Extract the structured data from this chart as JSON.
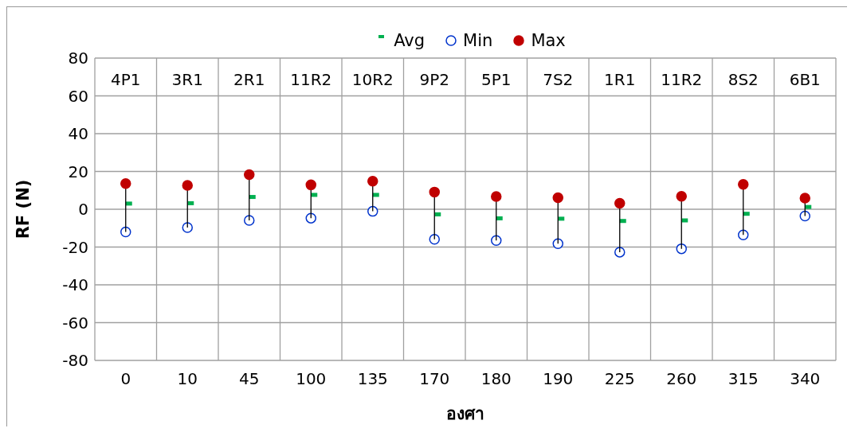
{
  "chart_data": {
    "type": "scatter",
    "xlabel": "องศา",
    "ylabel": "RF (N)",
    "categories": [
      "0",
      "10",
      "45",
      "100",
      "135",
      "170",
      "180",
      "190",
      "225",
      "260",
      "315",
      "340"
    ],
    "series": [
      {
        "name": "Avg",
        "color": "#00b050",
        "values": [
          3.0,
          3.2,
          6.5,
          7.6,
          7.6,
          -2.7,
          -4.8,
          -5.0,
          -6.2,
          -5.9,
          -2.4,
          1.2
        ]
      },
      {
        "name": "Min",
        "color": "#0033cc",
        "marker": "circle",
        "values": [
          -12.0,
          -9.7,
          -5.9,
          -4.7,
          -1.1,
          -15.9,
          -16.5,
          -18.2,
          -22.7,
          -20.9,
          -13.6,
          -3.6
        ]
      },
      {
        "name": "Max",
        "color": "#c00000",
        "marker": "circle",
        "values": [
          13.6,
          12.6,
          18.3,
          12.9,
          14.8,
          9.1,
          6.7,
          6.1,
          3.2,
          6.8,
          13.2,
          5.9
        ]
      }
    ],
    "ylim": [
      -80,
      80
    ],
    "yticks": [
      -80,
      -60,
      -40,
      -20,
      0,
      20,
      40,
      60,
      80
    ],
    "grid": true,
    "legend": "top",
    "annotations": [
      "4P1",
      "3R1",
      "2R1",
      "11R2",
      "10R2",
      "9P2",
      "5P1",
      "7S2",
      "1R1",
      "11R2",
      "8S2",
      "6B1"
    ]
  }
}
